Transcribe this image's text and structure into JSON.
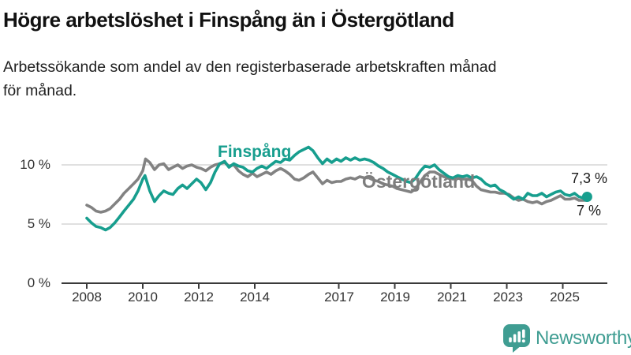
{
  "header": {
    "title": "Högre arbetslöshet i Finspång än i Östergötland",
    "subtitle_line1": "Arbetssökande som andel av den registerbaserade arbetskraften månad",
    "subtitle_line2": "för månad."
  },
  "colors": {
    "finspang": "#179e8e",
    "ostergotland": "#828282",
    "ostergotland_label": "#7d7d7d",
    "gridline": "#d6d6d6",
    "axis": "#3a3a3a",
    "brand_teal": "#3f9d92"
  },
  "chart_data": {
    "type": "line",
    "title": "Högre arbetslöshet i Finspång än i Östergötland",
    "xlabel": "",
    "ylabel": "Arbetssökande som andel av den registerbaserade arbetskraften (%)",
    "x_range": [
      2007.9,
      2026.3
    ],
    "y_range": [
      0,
      12.5
    ],
    "grid": "horizontal",
    "legend_position": "inline-labels",
    "x_axis": {
      "ticks": [
        {
          "year": 2008,
          "label": "2008"
        },
        {
          "year": 2010,
          "label": "2010"
        },
        {
          "year": 2012,
          "label": "2012"
        },
        {
          "year": 2014,
          "label": "2014"
        },
        {
          "year": 2017,
          "label": "2017"
        },
        {
          "year": 2019,
          "label": "2019"
        },
        {
          "year": 2021,
          "label": "2021"
        },
        {
          "year": 2023,
          "label": "2023"
        },
        {
          "year": 2025,
          "label": "2025"
        }
      ]
    },
    "y_axis": {
      "ticks": [
        {
          "value": 10,
          "label": "10 %"
        },
        {
          "value": 5,
          "label": "5 %"
        },
        {
          "value": 0,
          "label": "0 %"
        }
      ]
    },
    "series": [
      {
        "name": "Finspång",
        "end_label": "7,3 %",
        "end_value": 7.3,
        "end_dot": true,
        "points": [
          [
            2008.0,
            5.5
          ],
          [
            2008.17,
            5.1
          ],
          [
            2008.33,
            4.8
          ],
          [
            2008.5,
            4.7
          ],
          [
            2008.67,
            4.5
          ],
          [
            2008.83,
            4.7
          ],
          [
            2009.0,
            5.1
          ],
          [
            2009.17,
            5.6
          ],
          [
            2009.33,
            6.1
          ],
          [
            2009.5,
            6.6
          ],
          [
            2009.67,
            7.1
          ],
          [
            2009.83,
            7.8
          ],
          [
            2010.0,
            8.8
          ],
          [
            2010.08,
            9.1
          ],
          [
            2010.25,
            7.8
          ],
          [
            2010.42,
            6.9
          ],
          [
            2010.58,
            7.4
          ],
          [
            2010.75,
            7.8
          ],
          [
            2010.92,
            7.6
          ],
          [
            2011.08,
            7.5
          ],
          [
            2011.25,
            8.0
          ],
          [
            2011.42,
            8.3
          ],
          [
            2011.58,
            8.0
          ],
          [
            2011.75,
            8.4
          ],
          [
            2011.92,
            8.8
          ],
          [
            2012.08,
            8.5
          ],
          [
            2012.25,
            7.9
          ],
          [
            2012.42,
            8.5
          ],
          [
            2012.58,
            9.4
          ],
          [
            2012.75,
            10.1
          ],
          [
            2012.92,
            10.3
          ],
          [
            2013.08,
            9.8
          ],
          [
            2013.25,
            10.1
          ],
          [
            2013.42,
            9.9
          ],
          [
            2013.58,
            9.8
          ],
          [
            2013.75,
            9.5
          ],
          [
            2013.92,
            9.4
          ],
          [
            2014.08,
            9.7
          ],
          [
            2014.25,
            9.9
          ],
          [
            2014.42,
            9.7
          ],
          [
            2014.58,
            10.0
          ],
          [
            2014.75,
            10.3
          ],
          [
            2014.92,
            10.2
          ],
          [
            2015.08,
            10.5
          ],
          [
            2015.25,
            10.4
          ],
          [
            2015.42,
            10.8
          ],
          [
            2015.58,
            11.1
          ],
          [
            2015.75,
            11.3
          ],
          [
            2015.92,
            11.5
          ],
          [
            2016.08,
            11.2
          ],
          [
            2016.25,
            10.6
          ],
          [
            2016.42,
            10.1
          ],
          [
            2016.58,
            10.5
          ],
          [
            2016.75,
            10.2
          ],
          [
            2016.92,
            10.5
          ],
          [
            2017.08,
            10.3
          ],
          [
            2017.25,
            10.6
          ],
          [
            2017.42,
            10.4
          ],
          [
            2017.58,
            10.6
          ],
          [
            2017.75,
            10.4
          ],
          [
            2017.92,
            10.5
          ],
          [
            2018.08,
            10.4
          ],
          [
            2018.25,
            10.2
          ],
          [
            2018.42,
            9.9
          ],
          [
            2018.58,
            9.7
          ],
          [
            2018.75,
            9.4
          ],
          [
            2018.92,
            9.2
          ],
          [
            2019.08,
            9.0
          ],
          [
            2019.25,
            8.8
          ],
          [
            2019.42,
            8.6
          ],
          [
            2019.58,
            8.5
          ],
          [
            2019.75,
            8.9
          ],
          [
            2019.92,
            9.5
          ],
          [
            2020.08,
            9.9
          ],
          [
            2020.25,
            9.8
          ],
          [
            2020.42,
            10.0
          ],
          [
            2020.58,
            9.6
          ],
          [
            2020.75,
            9.3
          ],
          [
            2020.92,
            9.0
          ],
          [
            2021.08,
            8.9
          ],
          [
            2021.25,
            9.1
          ],
          [
            2021.42,
            9.0
          ],
          [
            2021.58,
            9.1
          ],
          [
            2021.75,
            8.9
          ],
          [
            2021.92,
            9.0
          ],
          [
            2022.08,
            8.8
          ],
          [
            2022.25,
            8.4
          ],
          [
            2022.42,
            8.2
          ],
          [
            2022.58,
            8.3
          ],
          [
            2022.75,
            7.9
          ],
          [
            2022.92,
            7.7
          ],
          [
            2023.08,
            7.4
          ],
          [
            2023.25,
            7.1
          ],
          [
            2023.42,
            7.3
          ],
          [
            2023.58,
            7.1
          ],
          [
            2023.75,
            7.6
          ],
          [
            2023.92,
            7.4
          ],
          [
            2024.08,
            7.4
          ],
          [
            2024.25,
            7.6
          ],
          [
            2024.42,
            7.3
          ],
          [
            2024.58,
            7.5
          ],
          [
            2024.75,
            7.7
          ],
          [
            2024.92,
            7.8
          ],
          [
            2025.08,
            7.5
          ],
          [
            2025.25,
            7.4
          ],
          [
            2025.42,
            7.6
          ],
          [
            2025.58,
            7.3
          ],
          [
            2025.75,
            7.2
          ],
          [
            2025.87,
            7.3
          ]
        ]
      },
      {
        "name": "Östergötland",
        "end_label": "7 %",
        "end_value": 7.0,
        "end_dot": false,
        "points": [
          [
            2008.0,
            6.6
          ],
          [
            2008.17,
            6.4
          ],
          [
            2008.33,
            6.1
          ],
          [
            2008.5,
            6.0
          ],
          [
            2008.67,
            6.1
          ],
          [
            2008.83,
            6.3
          ],
          [
            2009.0,
            6.7
          ],
          [
            2009.17,
            7.1
          ],
          [
            2009.33,
            7.6
          ],
          [
            2009.5,
            8.0
          ],
          [
            2009.67,
            8.4
          ],
          [
            2009.83,
            8.8
          ],
          [
            2010.0,
            9.5
          ],
          [
            2010.1,
            10.5
          ],
          [
            2010.25,
            10.2
          ],
          [
            2010.42,
            9.6
          ],
          [
            2010.58,
            10.0
          ],
          [
            2010.75,
            10.1
          ],
          [
            2010.92,
            9.6
          ],
          [
            2011.08,
            9.8
          ],
          [
            2011.25,
            10.0
          ],
          [
            2011.42,
            9.7
          ],
          [
            2011.58,
            9.9
          ],
          [
            2011.75,
            10.0
          ],
          [
            2011.92,
            9.8
          ],
          [
            2012.08,
            9.7
          ],
          [
            2012.25,
            9.5
          ],
          [
            2012.42,
            9.8
          ],
          [
            2012.58,
            10.0
          ],
          [
            2012.75,
            10.1
          ],
          [
            2012.92,
            10.2
          ],
          [
            2013.08,
            9.9
          ],
          [
            2013.25,
            10.0
          ],
          [
            2013.42,
            9.5
          ],
          [
            2013.58,
            9.2
          ],
          [
            2013.75,
            9.0
          ],
          [
            2013.92,
            9.3
          ],
          [
            2014.08,
            9.0
          ],
          [
            2014.25,
            9.2
          ],
          [
            2014.42,
            9.4
          ],
          [
            2014.58,
            9.2
          ],
          [
            2014.75,
            9.5
          ],
          [
            2014.92,
            9.7
          ],
          [
            2015.08,
            9.5
          ],
          [
            2015.25,
            9.2
          ],
          [
            2015.42,
            8.8
          ],
          [
            2015.58,
            8.7
          ],
          [
            2015.75,
            8.9
          ],
          [
            2015.92,
            9.2
          ],
          [
            2016.08,
            9.4
          ],
          [
            2016.25,
            8.9
          ],
          [
            2016.42,
            8.4
          ],
          [
            2016.58,
            8.7
          ],
          [
            2016.75,
            8.5
          ],
          [
            2016.92,
            8.6
          ],
          [
            2017.08,
            8.6
          ],
          [
            2017.25,
            8.8
          ],
          [
            2017.42,
            8.9
          ],
          [
            2017.58,
            8.8
          ],
          [
            2017.75,
            9.0
          ],
          [
            2017.92,
            8.9
          ],
          [
            2018.08,
            8.9
          ],
          [
            2018.25,
            8.7
          ],
          [
            2018.42,
            8.6
          ],
          [
            2018.58,
            8.4
          ],
          [
            2018.75,
            8.3
          ],
          [
            2018.92,
            8.2
          ],
          [
            2019.08,
            8.0
          ],
          [
            2019.25,
            7.9
          ],
          [
            2019.42,
            7.8
          ],
          [
            2019.58,
            7.7
          ],
          [
            2019.75,
            8.0
          ],
          [
            2019.92,
            8.6
          ],
          [
            2020.08,
            9.1
          ],
          [
            2020.25,
            9.4
          ],
          [
            2020.42,
            9.4
          ],
          [
            2020.58,
            9.2
          ],
          [
            2020.75,
            9.0
          ],
          [
            2020.92,
            8.9
          ],
          [
            2021.08,
            8.8
          ],
          [
            2021.25,
            8.9
          ],
          [
            2021.42,
            8.8
          ],
          [
            2021.58,
            8.8
          ],
          [
            2021.75,
            8.7
          ],
          [
            2021.92,
            8.2
          ],
          [
            2022.08,
            7.9
          ],
          [
            2022.25,
            7.8
          ],
          [
            2022.42,
            7.7
          ],
          [
            2022.58,
            7.7
          ],
          [
            2022.75,
            7.6
          ],
          [
            2022.92,
            7.6
          ],
          [
            2023.08,
            7.5
          ],
          [
            2023.25,
            7.2
          ],
          [
            2023.42,
            7.0
          ],
          [
            2023.58,
            7.1
          ],
          [
            2023.75,
            6.9
          ],
          [
            2023.92,
            6.8
          ],
          [
            2024.08,
            6.9
          ],
          [
            2024.25,
            6.7
          ],
          [
            2024.42,
            6.9
          ],
          [
            2024.58,
            7.0
          ],
          [
            2024.75,
            7.2
          ],
          [
            2024.92,
            7.4
          ],
          [
            2025.08,
            7.1
          ],
          [
            2025.25,
            7.1
          ],
          [
            2025.42,
            7.2
          ],
          [
            2025.58,
            7.0
          ],
          [
            2025.75,
            7.0
          ],
          [
            2025.87,
            7.0
          ]
        ]
      }
    ]
  },
  "footer": {
    "brand": "Newsworthy",
    "logo_icon": "bar-chart-speech-bubble-icon"
  }
}
